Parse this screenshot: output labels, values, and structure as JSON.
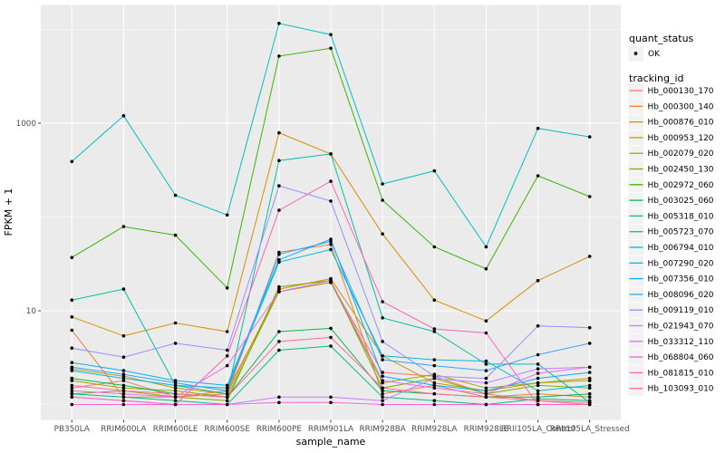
{
  "chart_data": {
    "type": "line",
    "xlabel": "sample_name",
    "ylabel": "FPKM + 1",
    "y_scale": "log10",
    "y_ticks": [
      {
        "label": "1000",
        "value": 1000
      },
      {
        "label": "10",
        "value": 10
      }
    ],
    "y_minor_gridlines": [
      1,
      100,
      10000
    ],
    "grid": true,
    "legend_position": "right",
    "categories": [
      "PB350LA",
      "RRIM600LA",
      "RRIM600LE",
      "RRIM600SE",
      "RRIM600PE",
      "RRIM901LA",
      "RRIM928BA",
      "RRIM928LA",
      "RRIM928LE",
      "RRII105LA_Control",
      "RRII105LA_Stressed"
    ],
    "legend": {
      "quant_title": "quant_status",
      "quant_items": [
        {
          "label": "OK",
          "marker": "point"
        }
      ],
      "tracking_title": "tracking_id"
    },
    "series": [
      {
        "name": "Hb_000130_170",
        "color": "#F8766D",
        "values": [
          1.5,
          1.8,
          1.2,
          1.4,
          16,
          20,
          2.2,
          2.0,
          1.3,
          1.1,
          1.05
        ]
      },
      {
        "name": "Hb_000300_140",
        "color": "#EA8331",
        "values": [
          6.2,
          1.2,
          1.2,
          1.3,
          42,
          51,
          1.3,
          1.6,
          1.2,
          1.3,
          1.2
        ]
      },
      {
        "name": "Hb_000876_010",
        "color": "#D89000",
        "values": [
          8.6,
          5.4,
          7.4,
          6.0,
          790,
          470,
          66,
          13,
          7.8,
          21,
          38
        ]
      },
      {
        "name": "Hb_000953_120",
        "color": "#C09B00",
        "values": [
          2.4,
          2.0,
          1.5,
          1.3,
          17,
          22,
          3.3,
          1.7,
          1.4,
          1.7,
          1.8
        ]
      },
      {
        "name": "Hb_002079_020",
        "color": "#A3A500",
        "values": [
          1.8,
          1.5,
          1.4,
          1.2,
          16,
          20,
          1.7,
          2.1,
          1.5,
          1.7,
          1.9
        ]
      },
      {
        "name": "Hb_002450_130",
        "color": "#7CAE00",
        "values": [
          1.3,
          1.4,
          1.2,
          1.1,
          18,
          21,
          1.5,
          1.9,
          1.3,
          1.6,
          1.5
        ]
      },
      {
        "name": "Hb_002972_060",
        "color": "#39B600",
        "values": [
          37,
          79,
          64,
          17.5,
          5200,
          6300,
          151,
          48,
          28,
          275,
          165
        ]
      },
      {
        "name": "Hb_003025_060",
        "color": "#00BB4E",
        "values": [
          1.9,
          1.6,
          1.3,
          1.2,
          6.0,
          6.5,
          1.4,
          1.3,
          1.2,
          1.2,
          1.3
        ]
      },
      {
        "name": "Hb_005318_010",
        "color": "#00BF7D",
        "values": [
          1.3,
          1.2,
          1.1,
          1.0,
          3.8,
          4.2,
          1.2,
          1.1,
          1.0,
          1.15,
          1.1
        ]
      },
      {
        "name": "Hb_005723_070",
        "color": "#00C1A3",
        "values": [
          13,
          17,
          1.6,
          1.3,
          400,
          470,
          8.4,
          6.0,
          2.7,
          2.7,
          1.05
        ]
      },
      {
        "name": "Hb_006794_010",
        "color": "#00BFC4",
        "values": [
          390,
          1200,
          170,
          105,
          11600,
          8800,
          225,
          310,
          48,
          880,
          715
        ]
      },
      {
        "name": "Hb_007290_020",
        "color": "#00BAE0",
        "values": [
          2.3,
          1.9,
          1.6,
          1.5,
          33,
          45,
          3.3,
          3.0,
          2.9,
          1.4,
          1.6
        ]
      },
      {
        "name": "Hb_007356_010",
        "color": "#00B0F6",
        "values": [
          2.8,
          2.3,
          1.8,
          1.6,
          35,
          58,
          2.0,
          1.6,
          1.4,
          1.9,
          2.2
        ]
      },
      {
        "name": "Hb_008096_020",
        "color": "#35A2FF",
        "values": [
          2.5,
          2.1,
          1.7,
          1.4,
          40,
          55,
          3.0,
          2.6,
          2.3,
          3.4,
          4.5
        ]
      },
      {
        "name": "Hb_009119_010",
        "color": "#9590FF",
        "values": [
          4.0,
          3.2,
          4.5,
          3.8,
          215,
          148,
          4.7,
          2.0,
          1.9,
          6.9,
          6.6
        ]
      },
      {
        "name": "Hb_021943_070",
        "color": "#C77CFF",
        "values": [
          1.2,
          1.1,
          1.0,
          1.0,
          1.2,
          1.2,
          1.1,
          1.9,
          1.7,
          2.4,
          2.5
        ]
      },
      {
        "name": "Hb_033312_110",
        "color": "#E76BF3",
        "values": [
          1.4,
          1.3,
          1.2,
          2.6,
          16,
          21,
          1.8,
          1.5,
          1.3,
          2.15,
          2.5
        ]
      },
      {
        "name": "Hb_068804_060",
        "color": "#FA62DB",
        "values": [
          1.0,
          1.0,
          1.0,
          1.0,
          1.05,
          1.05,
          1.0,
          1.0,
          1.0,
          1.0,
          1.0
        ]
      },
      {
        "name": "Hb_081815_010",
        "color": "#FF62BC",
        "values": [
          1.2,
          1.1,
          1.0,
          3.3,
          118,
          240,
          12.5,
          6.4,
          5.8,
          1.0,
          1.0
        ]
      },
      {
        "name": "Hb_103093_010",
        "color": "#FF6A98",
        "values": [
          1.6,
          1.4,
          1.3,
          1.2,
          4.7,
          5.2,
          1.5,
          1.3,
          1.2,
          1.1,
          1.0
        ]
      }
    ]
  },
  "colors": {
    "panel_background": "#EBEBEB",
    "gridline": "#FFFFFF",
    "legend_key_background": "#F2F2F2",
    "tick_text": "#4D4D4D",
    "point": "#000000"
  }
}
